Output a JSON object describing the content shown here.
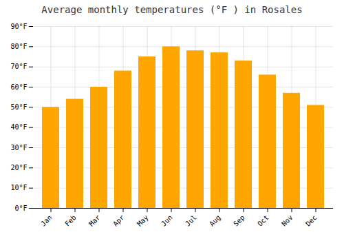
{
  "chart_data": {
    "type": "bar",
    "title": "Average monthly temperatures (°F ) in Rosales",
    "categories": [
      "Jan",
      "Feb",
      "Mar",
      "Apr",
      "May",
      "Jun",
      "Jul",
      "Aug",
      "Sep",
      "Oct",
      "Nov",
      "Dec"
    ],
    "values": [
      50,
      54,
      60,
      68,
      75,
      80,
      78,
      77,
      73,
      66,
      57,
      51
    ],
    "color": "#FFA500",
    "ylim": [
      0,
      90
    ],
    "yticks": [
      {
        "value": 0,
        "label": "0°F"
      },
      {
        "value": 10,
        "label": "10°F"
      },
      {
        "value": 20,
        "label": "20°F"
      },
      {
        "value": 30,
        "label": "30°F"
      },
      {
        "value": 40,
        "label": "40°F"
      },
      {
        "value": 50,
        "label": "50°F"
      },
      {
        "value": 60,
        "label": "60°F"
      },
      {
        "value": 70,
        "label": "70°F"
      },
      {
        "value": 80,
        "label": "80°F"
      },
      {
        "value": 90,
        "label": "90°F"
      }
    ],
    "grid": true
  }
}
